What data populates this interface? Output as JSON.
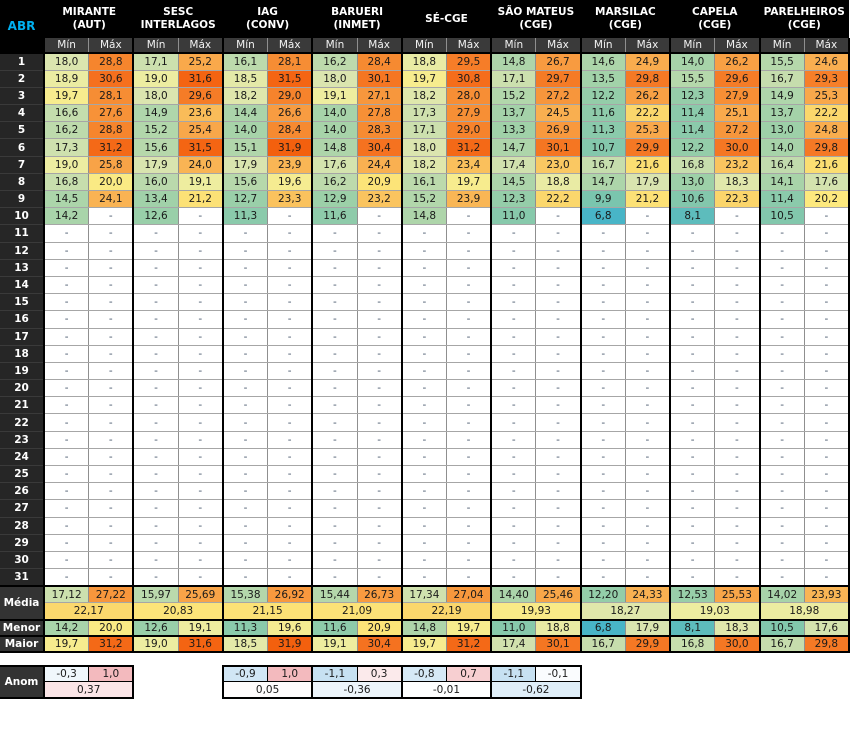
{
  "chart_data": {
    "type": "table",
    "title_corner": "ABR",
    "subheaders": [
      "Mín",
      "Máx"
    ],
    "stations": [
      {
        "name": "MIRANTE (AUT)",
        "lines": [
          "MIRANTE",
          "(AUT)"
        ],
        "anomaly": {
          "min": "-0,3",
          "max": "1,0",
          "avg": "0,37"
        }
      },
      {
        "name": "SESC INTERLAGOS",
        "lines": [
          "SESC",
          "INTERLAGOS"
        ],
        "anomaly": null
      },
      {
        "name": "IAG (CONV)",
        "lines": [
          "IAG",
          "(CONV)"
        ],
        "anomaly": {
          "min": "-0,9",
          "max": "1,0",
          "avg": "0,05"
        }
      },
      {
        "name": "BARUERI (INMET)",
        "lines": [
          "BARUERI",
          "(INMET)"
        ],
        "anomaly": {
          "min": "-1,1",
          "max": "0,3",
          "avg": "-0,36"
        }
      },
      {
        "name": "SÉ-CGE",
        "lines": [
          "SÉ-CGE"
        ],
        "anomaly": {
          "min": "-0,8",
          "max": "0,7",
          "avg": "-0,01"
        }
      },
      {
        "name": "SÃO MATEUS (CGE)",
        "lines": [
          "SÃO MATEUS",
          "(CGE)"
        ],
        "anomaly": {
          "min": "-1,1",
          "max": "-0,1",
          "avg": "-0,62"
        }
      },
      {
        "name": "MARSILAC (CGE)",
        "lines": [
          "MARSILAC",
          "(CGE)"
        ],
        "anomaly": null
      },
      {
        "name": "CAPELA (CGE)",
        "lines": [
          "CAPELA",
          "(CGE)"
        ],
        "anomaly": null
      },
      {
        "name": "PARELHEIROS (CGE)",
        "lines": [
          "PARELHEIROS",
          "(CGE)"
        ],
        "anomaly": null
      }
    ],
    "days": [
      {
        "day": "1",
        "values": [
          "18,0",
          "28,8",
          "17,1",
          "25,2",
          "16,1",
          "28,1",
          "16,2",
          "28,4",
          "18,8",
          "29,5",
          "14,8",
          "26,7",
          "14,6",
          "24,9",
          "14,0",
          "26,2",
          "15,5",
          "24,6"
        ]
      },
      {
        "day": "2",
        "values": [
          "18,9",
          "30,6",
          "19,0",
          "31,6",
          "18,5",
          "31,5",
          "18,0",
          "30,1",
          "19,7",
          "30,8",
          "17,1",
          "29,7",
          "13,5",
          "29,8",
          "15,5",
          "29,6",
          "16,7",
          "29,3"
        ]
      },
      {
        "day": "3",
        "values": [
          "19,7",
          "28,1",
          "18,0",
          "29,6",
          "18,2",
          "29,0",
          "19,1",
          "27,1",
          "18,2",
          "28,0",
          "15,2",
          "27,2",
          "12,2",
          "26,2",
          "12,3",
          "27,9",
          "14,9",
          "25,3"
        ]
      },
      {
        "day": "4",
        "values": [
          "16,6",
          "27,6",
          "14,9",
          "23,6",
          "14,4",
          "26,6",
          "14,0",
          "27,8",
          "17,3",
          "27,9",
          "13,7",
          "24,5",
          "11,6",
          "22,2",
          "11,4",
          "25,1",
          "13,7",
          "22,2"
        ]
      },
      {
        "day": "5",
        "values": [
          "16,2",
          "28,8",
          "15,2",
          "25,4",
          "14,0",
          "28,4",
          "14,0",
          "28,3",
          "17,1",
          "29,0",
          "13,3",
          "26,9",
          "11,3",
          "25,3",
          "11,4",
          "27,2",
          "13,0",
          "24,8"
        ]
      },
      {
        "day": "6",
        "values": [
          "17,3",
          "31,2",
          "15,6",
          "31,5",
          "15,1",
          "31,9",
          "14,8",
          "30,4",
          "18,0",
          "31,2",
          "14,7",
          "30,1",
          "10,7",
          "29,9",
          "12,2",
          "30,0",
          "14,0",
          "29,8"
        ]
      },
      {
        "day": "7",
        "values": [
          "19,0",
          "25,8",
          "17,9",
          "24,0",
          "17,9",
          "23,9",
          "17,6",
          "24,4",
          "18,2",
          "23,4",
          "17,4",
          "23,0",
          "16,7",
          "21,6",
          "16,8",
          "23,2",
          "16,4",
          "21,6"
        ]
      },
      {
        "day": "8",
        "values": [
          "16,8",
          "20,0",
          "16,0",
          "19,1",
          "15,6",
          "19,6",
          "16,2",
          "20,9",
          "16,1",
          "19,7",
          "14,5",
          "18,8",
          "14,7",
          "17,9",
          "13,0",
          "18,3",
          "14,1",
          "17,6"
        ]
      },
      {
        "day": "9",
        "values": [
          "14,5",
          "24,1",
          "13,4",
          "21,2",
          "12,7",
          "23,3",
          "12,9",
          "23,2",
          "15,2",
          "23,9",
          "12,3",
          "22,2",
          "9,9",
          "21,2",
          "10,6",
          "22,3",
          "11,4",
          "20,2"
        ]
      },
      {
        "day": "10",
        "values": [
          "14,2",
          "-",
          "12,6",
          "-",
          "11,3",
          "-",
          "11,6",
          "-",
          "14,8",
          "-",
          "11,0",
          "-",
          "6,8",
          "-",
          "8,1",
          "-",
          "10,5",
          "-"
        ]
      },
      {
        "day": "11",
        "values": [
          "-",
          "-",
          "-",
          "-",
          "-",
          "-",
          "-",
          "-",
          "-",
          "-",
          "-",
          "-",
          "-",
          "-",
          "-",
          "-",
          "-",
          "-"
        ]
      },
      {
        "day": "12",
        "values": [
          "-",
          "-",
          "-",
          "-",
          "-",
          "-",
          "-",
          "-",
          "-",
          "-",
          "-",
          "-",
          "-",
          "-",
          "-",
          "-",
          "-",
          "-"
        ]
      },
      {
        "day": "13",
        "values": [
          "-",
          "-",
          "-",
          "-",
          "-",
          "-",
          "-",
          "-",
          "-",
          "-",
          "-",
          "-",
          "-",
          "-",
          "-",
          "-",
          "-",
          "-"
        ]
      },
      {
        "day": "14",
        "values": [
          "-",
          "-",
          "-",
          "-",
          "-",
          "-",
          "-",
          "-",
          "-",
          "-",
          "-",
          "-",
          "-",
          "-",
          "-",
          "-",
          "-",
          "-"
        ]
      },
      {
        "day": "15",
        "values": [
          "-",
          "-",
          "-",
          "-",
          "-",
          "-",
          "-",
          "-",
          "-",
          "-",
          "-",
          "-",
          "-",
          "-",
          "-",
          "-",
          "-",
          "-"
        ]
      },
      {
        "day": "16",
        "values": [
          "-",
          "-",
          "-",
          "-",
          "-",
          "-",
          "-",
          "-",
          "-",
          "-",
          "-",
          "-",
          "-",
          "-",
          "-",
          "-",
          "-",
          "-"
        ]
      },
      {
        "day": "17",
        "values": [
          "-",
          "-",
          "-",
          "-",
          "-",
          "-",
          "-",
          "-",
          "-",
          "-",
          "-",
          "-",
          "-",
          "-",
          "-",
          "-",
          "-",
          "-"
        ]
      },
      {
        "day": "18",
        "values": [
          "-",
          "-",
          "-",
          "-",
          "-",
          "-",
          "-",
          "-",
          "-",
          "-",
          "-",
          "-",
          "-",
          "-",
          "-",
          "-",
          "-",
          "-"
        ]
      },
      {
        "day": "19",
        "values": [
          "-",
          "-",
          "-",
          "-",
          "-",
          "-",
          "-",
          "-",
          "-",
          "-",
          "-",
          "-",
          "-",
          "-",
          "-",
          "-",
          "-",
          "-"
        ]
      },
      {
        "day": "20",
        "values": [
          "-",
          "-",
          "-",
          "-",
          "-",
          "-",
          "-",
          "-",
          "-",
          "-",
          "-",
          "-",
          "-",
          "-",
          "-",
          "-",
          "-",
          "-"
        ]
      },
      {
        "day": "21",
        "values": [
          "-",
          "-",
          "-",
          "-",
          "-",
          "-",
          "-",
          "-",
          "-",
          "-",
          "-",
          "-",
          "-",
          "-",
          "-",
          "-",
          "-",
          "-"
        ]
      },
      {
        "day": "22",
        "values": [
          "-",
          "-",
          "-",
          "-",
          "-",
          "-",
          "-",
          "-",
          "-",
          "-",
          "-",
          "-",
          "-",
          "-",
          "-",
          "-",
          "-",
          "-"
        ]
      },
      {
        "day": "23",
        "values": [
          "-",
          "-",
          "-",
          "-",
          "-",
          "-",
          "-",
          "-",
          "-",
          "-",
          "-",
          "-",
          "-",
          "-",
          "-",
          "-",
          "-",
          "-"
        ]
      },
      {
        "day": "24",
        "values": [
          "-",
          "-",
          "-",
          "-",
          "-",
          "-",
          "-",
          "-",
          "-",
          "-",
          "-",
          "-",
          "-",
          "-",
          "-",
          "-",
          "-",
          "-"
        ]
      },
      {
        "day": "25",
        "values": [
          "-",
          "-",
          "-",
          "-",
          "-",
          "-",
          "-",
          "-",
          "-",
          "-",
          "-",
          "-",
          "-",
          "-",
          "-",
          "-",
          "-",
          "-"
        ]
      },
      {
        "day": "26",
        "values": [
          "-",
          "-",
          "-",
          "-",
          "-",
          "-",
          "-",
          "-",
          "-",
          "-",
          "-",
          "-",
          "-",
          "-",
          "-",
          "-",
          "-",
          "-"
        ]
      },
      {
        "day": "27",
        "values": [
          "-",
          "-",
          "-",
          "-",
          "-",
          "-",
          "-",
          "-",
          "-",
          "-",
          "-",
          "-",
          "-",
          "-",
          "-",
          "-",
          "-",
          "-"
        ]
      },
      {
        "day": "28",
        "values": [
          "-",
          "-",
          "-",
          "-",
          "-",
          "-",
          "-",
          "-",
          "-",
          "-",
          "-",
          "-",
          "-",
          "-",
          "-",
          "-",
          "-",
          "-"
        ]
      },
      {
        "day": "29",
        "values": [
          "-",
          "-",
          "-",
          "-",
          "-",
          "-",
          "-",
          "-",
          "-",
          "-",
          "-",
          "-",
          "-",
          "-",
          "-",
          "-",
          "-",
          "-"
        ]
      },
      {
        "day": "30",
        "values": [
          "-",
          "-",
          "-",
          "-",
          "-",
          "-",
          "-",
          "-",
          "-",
          "-",
          "-",
          "-",
          "-",
          "-",
          "-",
          "-",
          "-",
          "-"
        ]
      },
      {
        "day": "31",
        "values": [
          "-",
          "-",
          "-",
          "-",
          "-",
          "-",
          "-",
          "-",
          "-",
          "-",
          "-",
          "-",
          "-",
          "-",
          "-",
          "-",
          "-",
          "-"
        ]
      }
    ],
    "summary": {
      "media_label": "Média",
      "menor_label": "Menor",
      "maior_label": "Maior",
      "anom_label": "Anom",
      "media_min_max": [
        "17,12",
        "27,22",
        "15,97",
        "25,69",
        "15,38",
        "26,92",
        "15,44",
        "26,73",
        "17,34",
        "27,04",
        "14,40",
        "25,46",
        "12,20",
        "24,33",
        "12,53",
        "25,53",
        "14,02",
        "23,93"
      ],
      "media_avg": [
        "22,17",
        "20,83",
        "21,15",
        "21,09",
        "22,19",
        "19,93",
        "18,27",
        "19,03",
        "18,98"
      ],
      "menor": [
        "14,2",
        "20,0",
        "12,6",
        "19,1",
        "11,3",
        "19,6",
        "11,6",
        "20,9",
        "14,8",
        "19,7",
        "11,0",
        "18,8",
        "6,8",
        "17,9",
        "8,1",
        "18,3",
        "10,5",
        "17,6"
      ],
      "maior": [
        "19,7",
        "31,2",
        "19,0",
        "31,6",
        "18,5",
        "31,9",
        "19,1",
        "30,4",
        "19,7",
        "31,2",
        "17,4",
        "30,1",
        "16,7",
        "29,9",
        "16,8",
        "30,0",
        "16,7",
        "29,8"
      ]
    },
    "colors": {
      "header_bg": "#000000",
      "subheader_bg": "#3a3a3a",
      "day_label_bg": "#262626",
      "summary_label_bg": "#333333",
      "corner_text": "#00b0f0",
      "header_text": "#ffffff",
      "cell_text": "#1a1a1a",
      "dash_text": "#44546a",
      "grid_line": "#a6a6a6",
      "group_border": "#000000",
      "temperature_scale": [
        [
          6.8,
          "#48b5c7"
        ],
        [
          10.0,
          "#7cc5ad"
        ],
        [
          13.0,
          "#9dd0a8"
        ],
        [
          16.0,
          "#bad9ac"
        ],
        [
          18.0,
          "#dbe5af"
        ],
        [
          19.2,
          "#f0ee9e"
        ],
        [
          20.2,
          "#fde97e"
        ],
        [
          22.0,
          "#fbdb6f"
        ],
        [
          24.0,
          "#f9b454"
        ],
        [
          26.5,
          "#f89d42"
        ],
        [
          28.5,
          "#f68930"
        ],
        [
          30.5,
          "#f5711f"
        ],
        [
          32.0,
          "#f35f0d"
        ]
      ],
      "anomaly_scale": [
        [
          -1.2,
          "#c2def1"
        ],
        [
          0.0,
          "#ffffff"
        ],
        [
          1.1,
          "#f2b3b7"
        ]
      ]
    }
  }
}
